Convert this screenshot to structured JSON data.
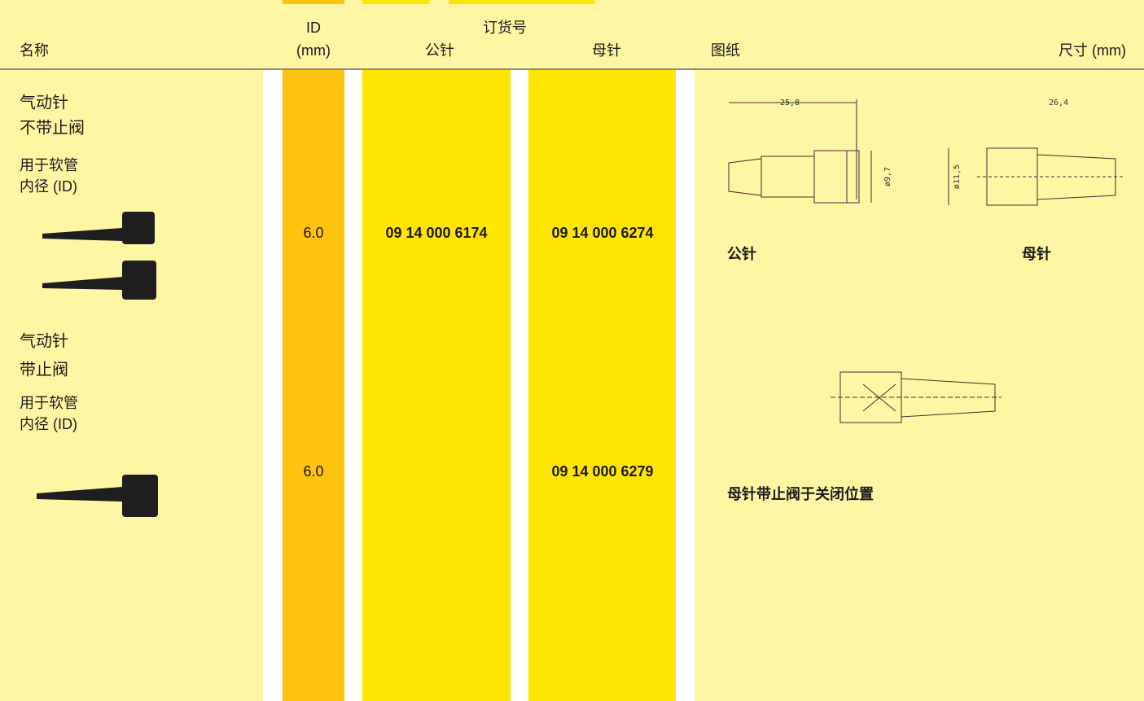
{
  "header": {
    "name": "名称",
    "id": "ID",
    "id_unit": "(mm)",
    "order_no": "订货号",
    "male": "公针",
    "female": "母针",
    "drawing": "图纸",
    "dimensions": "尺寸 (mm)"
  },
  "rows": [
    {
      "title": [
        "气动针",
        "不带止阀"
      ],
      "note": [
        "用于软管",
        "内径 (ID)"
      ],
      "id": "6.0",
      "male_no": "09 14 000 6174",
      "female_no": "09 14 000 6274",
      "drawing": {
        "male_label": "公针",
        "female_label": "母针",
        "male_length": "25,8",
        "male_dia": "ø9,7",
        "female_length": "26,4",
        "female_dia": "ø11,5"
      }
    },
    {
      "title": [
        "气动针",
        "带止阀"
      ],
      "note": [
        "用于软管",
        "内径 (ID)"
      ],
      "id": "6.0",
      "female_no": "09 14 000 6279",
      "drawing": {
        "caption": "母针带止阀于关闭位置"
      }
    }
  ]
}
